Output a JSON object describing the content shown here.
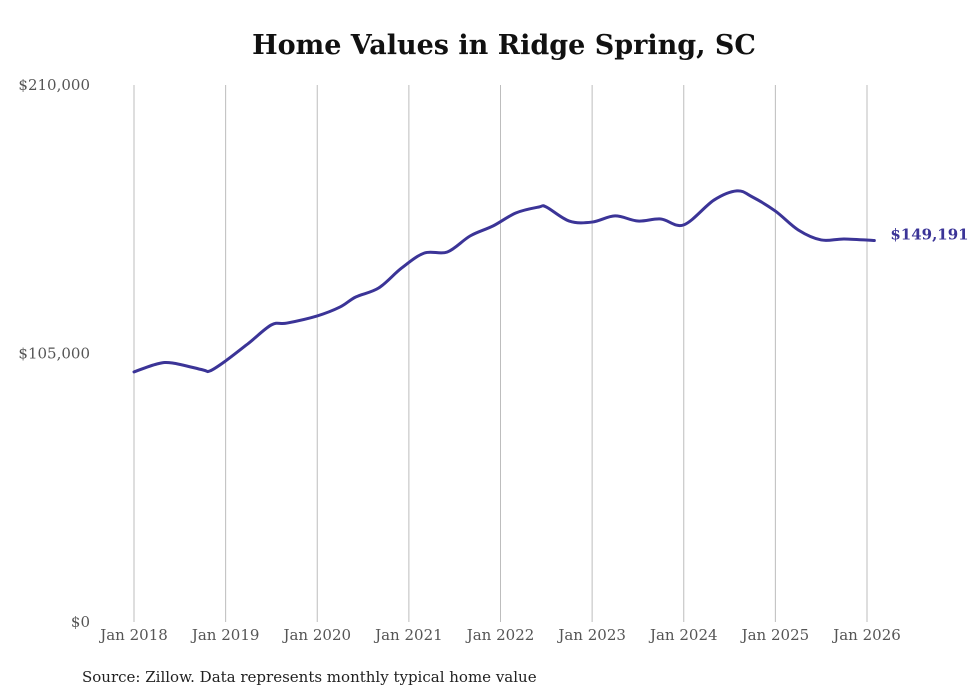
{
  "chart_data": {
    "type": "line",
    "title": "Home Values in Ridge Spring, SC",
    "xlabel": "",
    "ylabel": "",
    "ylim": [
      0,
      210000
    ],
    "y_ticks": [
      {
        "value": 0,
        "label": "$0"
      },
      {
        "value": 105000,
        "label": "$105,000"
      },
      {
        "value": 210000,
        "label": "$210,000"
      }
    ],
    "x_ticks": [
      {
        "year": 2018,
        "label": "Jan 2018"
      },
      {
        "year": 2019,
        "label": "Jan 2019"
      },
      {
        "year": 2020,
        "label": "Jan 2020"
      },
      {
        "year": 2021,
        "label": "Jan 2021"
      },
      {
        "year": 2022,
        "label": "Jan 2022"
      },
      {
        "year": 2023,
        "label": "Jan 2023"
      },
      {
        "year": 2024,
        "label": "Jan 2024"
      },
      {
        "year": 2025,
        "label": "Jan 2025"
      },
      {
        "year": 2026,
        "label": "Jan 2026"
      }
    ],
    "xlim": [
      2018,
      2026
    ],
    "grid": "vertical",
    "series": [
      {
        "name": "Typical home value",
        "color": "#3b3497",
        "x": [
          2018.0,
          2018.25,
          2018.42,
          2018.75,
          2018.83,
          2019.0,
          2019.25,
          2019.5,
          2019.67,
          2020.0,
          2020.25,
          2020.42,
          2020.67,
          2020.92,
          2021.17,
          2021.42,
          2021.67,
          2021.92,
          2022.17,
          2022.42,
          2022.5,
          2022.75,
          2023.0,
          2023.25,
          2023.5,
          2023.75,
          2024.0,
          2024.33,
          2024.58,
          2024.75,
          2025.0,
          2025.25,
          2025.5,
          2025.75,
          2026.08
        ],
        "values": [
          97800,
          100900,
          101300,
          98600,
          98200,
          102100,
          109000,
          116200,
          116900,
          119700,
          123200,
          127100,
          130600,
          138400,
          144300,
          144700,
          151000,
          154900,
          160000,
          162300,
          162300,
          156800,
          156400,
          158800,
          156800,
          157600,
          155300,
          165000,
          168600,
          166200,
          160700,
          153300,
          149400,
          149800,
          149191
        ]
      }
    ],
    "end_label": "$149,191",
    "source": "Source: Zillow. Data represents monthly typical home value"
  }
}
